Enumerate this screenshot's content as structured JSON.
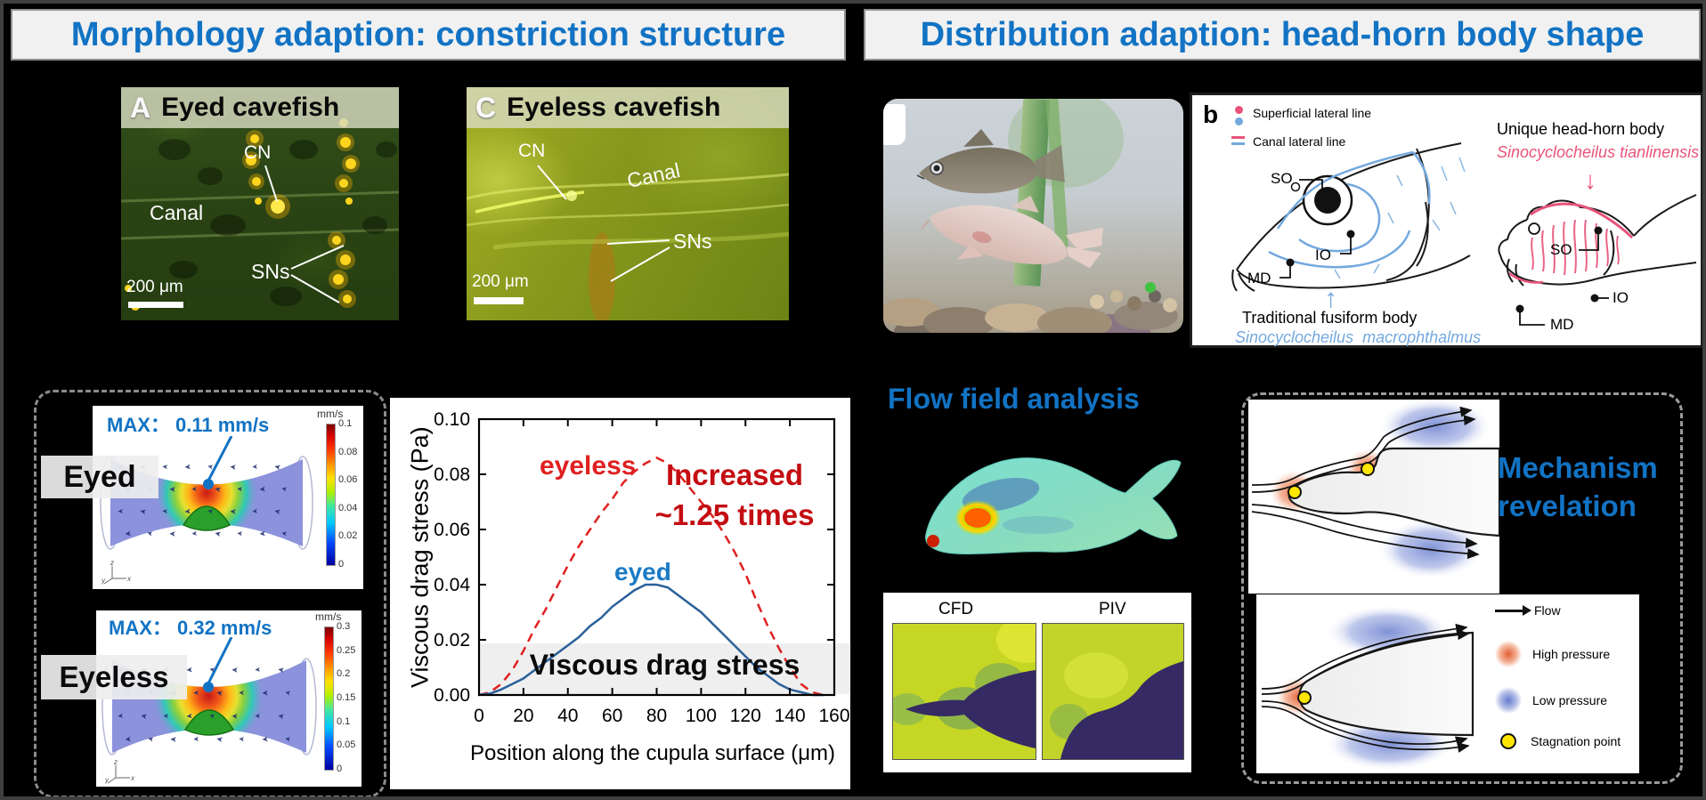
{
  "icons": {
    "flow_arrow": "➤",
    "up_arrow": "↑",
    "down_arrow": "↓"
  },
  "colors": {
    "accent_blue": "#1273c4",
    "accent_red": "#c40d12",
    "curve_red": "#e02020",
    "curve_blue": "#2a6099",
    "diagram_pink": "#e8537a",
    "diagram_blue": "#74a9de",
    "stagnation_yellow": "#ffe600"
  },
  "left_panel": {
    "title": "Morphology adaption: constriction structure",
    "micrograph_eyed": {
      "panel_tag": "A",
      "title": "Eyed cavefish",
      "label_cn": "CN",
      "label_canal": "Canal",
      "label_sns": "SNs",
      "scale_bar": "200 μm"
    },
    "micrograph_eyeless": {
      "panel_tag": "C",
      "title": "Eyeless cavefish",
      "label_cn": "CN",
      "label_canal": "Canal",
      "label_sns": "SNs",
      "scale_bar": "200 μm"
    },
    "sim_eyed": {
      "side_label": "Eyed",
      "max_label": "MAX： 0.11 mm/s",
      "colorbar_unit": "mm/s",
      "colorbar_ticks": [
        "0.1",
        "0.08",
        "0.06",
        "0.04",
        "0.02",
        "0"
      ]
    },
    "sim_eyeless": {
      "side_label": "Eyeless",
      "max_label": "MAX： 0.32 mm/s",
      "colorbar_unit": "mm/s",
      "colorbar_ticks": [
        "0.3",
        "0.25",
        "0.2",
        "0.15",
        "0.1",
        "0.05",
        "0"
      ]
    }
  },
  "right_panel": {
    "title": "Distribution adaption: head-horn body shape",
    "diagram": {
      "tag": "b",
      "legend_superficial": "Superficial lateral line",
      "legend_canal": "Canal lateral line",
      "so": "SO",
      "io": "IO",
      "md": "MD",
      "left_caption": "Traditional fusiform body",
      "left_species": "Sinocyclocheilus  macrophthalmus",
      "right_caption": "Unique head-horn body",
      "right_species": "Sinocyclocheilus tianlinensis"
    },
    "flow_field": {
      "title": "Flow field analysis",
      "cfd_label": "CFD",
      "piv_label": "PIV"
    },
    "mechanism": {
      "title_line1": "Mechanism",
      "title_line2": "revelation",
      "legend_flow": "Flow",
      "legend_high": "High pressure",
      "legend_low": "Low pressure",
      "legend_stagnation": "Stagnation point"
    }
  },
  "chart_data": {
    "type": "line",
    "title": "",
    "xlabel": "Position along the cupula surface (μm)",
    "ylabel": "Viscous drag stress (Pa)",
    "xlim": [
      0,
      160
    ],
    "ylim": [
      0,
      0.1
    ],
    "xticks": [
      0,
      20,
      40,
      60,
      80,
      100,
      120,
      140,
      160
    ],
    "yticks": [
      0,
      0.02,
      0.04,
      0.06,
      0.08,
      0.1
    ],
    "ytick_labels": [
      "0.00",
      "0.02",
      "0.04",
      "0.06",
      "0.08",
      "0.10"
    ],
    "grid": false,
    "legend_position": "none",
    "series": [
      {
        "name": "eyeless",
        "color": "#e02020",
        "style": "dashed",
        "x": [
          0,
          5,
          10,
          15,
          20,
          25,
          30,
          35,
          40,
          45,
          50,
          55,
          60,
          65,
          70,
          75,
          80,
          85,
          90,
          95,
          100,
          105,
          110,
          115,
          120,
          125,
          130,
          135,
          140,
          145,
          150,
          155
        ],
        "y": [
          0,
          0.001,
          0.004,
          0.009,
          0.016,
          0.024,
          0.031,
          0.039,
          0.047,
          0.054,
          0.06,
          0.066,
          0.071,
          0.077,
          0.081,
          0.084,
          0.086,
          0.084,
          0.08,
          0.075,
          0.07,
          0.065,
          0.059,
          0.052,
          0.044,
          0.034,
          0.025,
          0.017,
          0.01,
          0.004,
          0.001,
          0
        ]
      },
      {
        "name": "eyed",
        "color": "#2a6099",
        "style": "solid",
        "x": [
          0,
          5,
          10,
          15,
          20,
          25,
          30,
          35,
          40,
          45,
          50,
          55,
          60,
          65,
          70,
          75,
          80,
          85,
          90,
          95,
          100,
          105,
          110,
          115,
          120,
          125,
          130,
          135,
          140,
          145,
          150,
          155
        ],
        "y": [
          0,
          0.0005,
          0.002,
          0.004,
          0.006,
          0.009,
          0.012,
          0.015,
          0.018,
          0.021,
          0.025,
          0.028,
          0.032,
          0.035,
          0.038,
          0.04,
          0.04,
          0.039,
          0.036,
          0.033,
          0.03,
          0.026,
          0.022,
          0.018,
          0.014,
          0.01,
          0.007,
          0.004,
          0.002,
          0.001,
          0,
          0
        ]
      }
    ],
    "annotations": {
      "series1": "eyeless",
      "series2": "eyed",
      "note_line1": "Increased",
      "note_line2": "~1.25 times",
      "band_label": "Viscous drag stress"
    }
  }
}
